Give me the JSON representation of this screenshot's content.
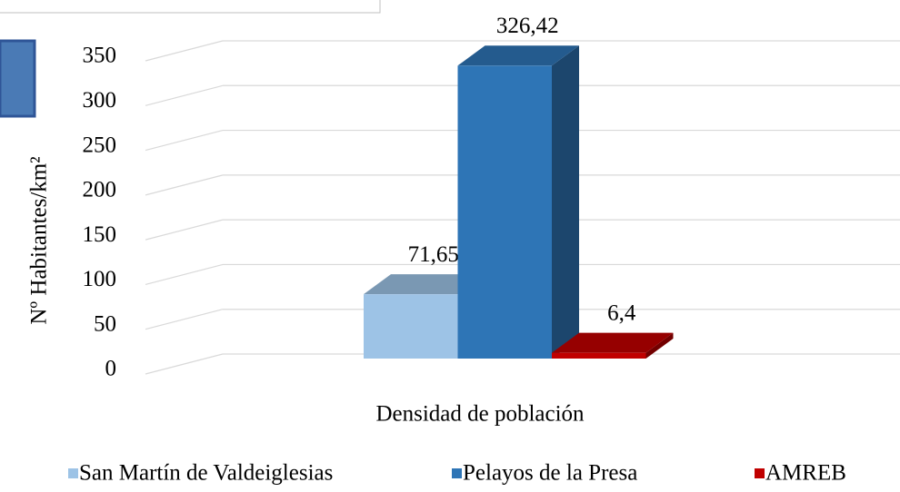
{
  "chart_data": {
    "type": "bar3d",
    "y_label": "Nº Habitantes/km²",
    "categories": [
      "Densidad de población"
    ],
    "series": [
      {
        "name": "San Martín de Valdeiglesias",
        "color": "#9dc3e6",
        "values": [
          71.65
        ],
        "value_labels": [
          "71,65"
        ]
      },
      {
        "name": "Pelayos de la Presa",
        "color": "#2e75b6",
        "values": [
          326.42
        ],
        "value_labels": [
          "326,42"
        ]
      },
      {
        "name": "AMREB",
        "color": "#c00000",
        "values": [
          6.4
        ],
        "value_labels": [
          "6,4"
        ]
      }
    ],
    "ylim": [
      0,
      350
    ],
    "yticks": [
      0,
      50,
      100,
      150,
      200,
      250,
      300,
      350
    ],
    "grid": true
  }
}
